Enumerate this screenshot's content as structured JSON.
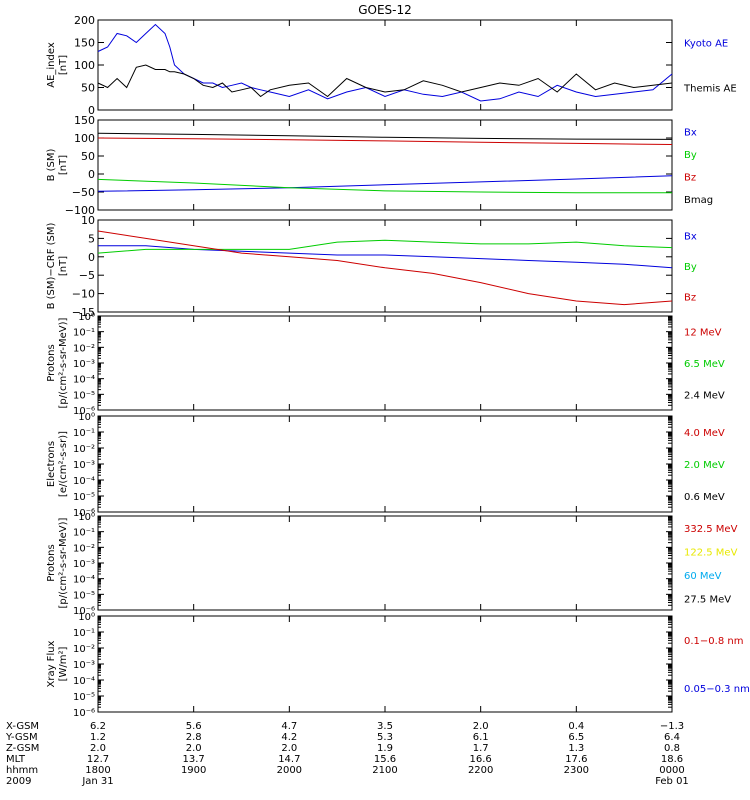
{
  "title": "GOES-12",
  "colors": {
    "black": "#000000",
    "blue": "#0000dd",
    "red": "#cc0000",
    "green": "#00cc00",
    "yellow": "#e8e800",
    "cyan": "#00aaee"
  },
  "chart_data": [
    {
      "type": "line",
      "ylabel": [
        "AE_index",
        "[nT]"
      ],
      "ylim": [
        0,
        200
      ],
      "yticks": [
        "200",
        "150",
        "100",
        "50",
        "0"
      ],
      "yticks_values": [
        200,
        150,
        100,
        50,
        0
      ],
      "legend": [
        {
          "label": "Kyoto AE",
          "color": "blue"
        },
        {
          "label": "Themis AE",
          "color": "black"
        }
      ],
      "x": [
        0,
        0.1,
        0.2,
        0.3,
        0.4,
        0.5,
        0.6,
        0.7,
        0.75,
        0.8,
        0.9,
        1.0,
        1.1,
        1.2,
        1.3,
        1.4,
        1.5,
        1.6,
        1.7,
        1.8,
        2.0,
        2.2,
        2.4,
        2.6,
        2.8,
        3.0,
        3.2,
        3.4,
        3.6,
        3.8,
        4.0,
        4.2,
        4.4,
        4.6,
        4.8,
        5.0,
        5.2,
        5.4,
        5.6,
        5.8,
        6.0
      ],
      "series": [
        {
          "name": "Kyoto AE",
          "color": "blue",
          "values": [
            130,
            140,
            170,
            165,
            150,
            170,
            190,
            170,
            140,
            100,
            80,
            70,
            60,
            60,
            50,
            55,
            60,
            50,
            45,
            40,
            30,
            45,
            25,
            40,
            50,
            30,
            45,
            35,
            30,
            40,
            20,
            25,
            40,
            30,
            55,
            40,
            30,
            35,
            40,
            45,
            80
          ]
        },
        {
          "name": "Themis AE",
          "color": "black",
          "values": [
            60,
            50,
            70,
            50,
            95,
            100,
            90,
            90,
            85,
            85,
            80,
            70,
            55,
            50,
            60,
            40,
            45,
            50,
            30,
            45,
            55,
            60,
            30,
            70,
            50,
            40,
            45,
            65,
            55,
            40,
            50,
            60,
            55,
            70,
            40,
            80,
            45,
            60,
            50,
            55,
            60
          ]
        }
      ]
    },
    {
      "type": "line",
      "ylabel": [
        "B (SM)",
        "[nT]"
      ],
      "ylim": [
        -100,
        150
      ],
      "yticks": [
        "150",
        "100",
        "50",
        "0",
        "−50",
        "−100"
      ],
      "yticks_values": [
        150,
        100,
        50,
        0,
        -50,
        -100
      ],
      "legend": [
        {
          "label": "Bx",
          "color": "blue"
        },
        {
          "label": "By",
          "color": "green"
        },
        {
          "label": "Bz",
          "color": "red"
        },
        {
          "label": "Bmag",
          "color": "black"
        }
      ],
      "x": [
        0,
        1,
        2,
        3,
        4,
        5,
        6
      ],
      "series": [
        {
          "name": "Bx",
          "color": "blue",
          "values": [
            -48,
            -44,
            -38,
            -30,
            -22,
            -14,
            -5
          ]
        },
        {
          "name": "By",
          "color": "green",
          "values": [
            -15,
            -25,
            -38,
            -47,
            -50,
            -52,
            -52
          ]
        },
        {
          "name": "Bz",
          "color": "red",
          "values": [
            100,
            98,
            95,
            92,
            88,
            85,
            82
          ]
        },
        {
          "name": "Bmag",
          "color": "black",
          "values": [
            113,
            110,
            106,
            102,
            99,
            97,
            96
          ]
        }
      ]
    },
    {
      "type": "line",
      "ylabel": [
        "B (SM)−CRF (SM)",
        "[nT]"
      ],
      "ylim": [
        -15,
        10
      ],
      "yticks": [
        "10",
        "5",
        "0",
        "−5",
        "−10",
        "−15"
      ],
      "yticks_values": [
        10,
        5,
        0,
        -5,
        -10,
        -15
      ],
      "legend": [
        {
          "label": "Bx",
          "color": "blue"
        },
        {
          "label": "By",
          "color": "green"
        },
        {
          "label": "Bz",
          "color": "red"
        }
      ],
      "x": [
        0,
        0.5,
        1,
        1.5,
        2,
        2.5,
        3,
        3.5,
        4,
        4.5,
        5,
        5.5,
        6
      ],
      "series": [
        {
          "name": "Bx",
          "color": "blue",
          "values": [
            3,
            3,
            2,
            1.5,
            1,
            0.5,
            0.5,
            0,
            -0.5,
            -1,
            -1.5,
            -2,
            -3
          ]
        },
        {
          "name": "By",
          "color": "green",
          "values": [
            1,
            2,
            2,
            2,
            2,
            4,
            4.5,
            4,
            3.5,
            3.5,
            4,
            3,
            2.5
          ]
        },
        {
          "name": "Bz",
          "color": "red",
          "values": [
            7,
            5,
            3,
            1,
            0,
            -1,
            -3,
            -4.5,
            -7,
            -10,
            -12,
            -13,
            -12
          ]
        }
      ]
    },
    {
      "type": "line",
      "ylabel": [
        "Protons",
        "[p/(cm²-s-sr-MeV)]"
      ],
      "log": true,
      "yticks": [
        "10⁰",
        "10⁻¹",
        "10⁻²",
        "10⁻³",
        "10⁻⁴",
        "10⁻⁵",
        "10⁻⁶"
      ],
      "legend": [
        {
          "label": "12 MeV",
          "color": "red"
        },
        {
          "label": "6.5 MeV",
          "color": "green"
        },
        {
          "label": "2.4 MeV",
          "color": "black"
        }
      ],
      "series": []
    },
    {
      "type": "line",
      "ylabel": [
        "Electrons",
        "[e/(cm²-s-sr)]"
      ],
      "log": true,
      "yticks": [
        "10⁰",
        "10⁻¹",
        "10⁻²",
        "10⁻³",
        "10⁻⁴",
        "10⁻⁵",
        "10⁻⁶"
      ],
      "legend": [
        {
          "label": "4.0 MeV",
          "color": "red"
        },
        {
          "label": "2.0 MeV",
          "color": "green"
        },
        {
          "label": "0.6 MeV",
          "color": "black"
        }
      ],
      "series": []
    },
    {
      "type": "line",
      "ylabel": [
        "Protons",
        "[p/(cm²-s-sr-MeV)]"
      ],
      "log": true,
      "yticks": [
        "10⁰",
        "10⁻¹",
        "10⁻²",
        "10⁻³",
        "10⁻⁴",
        "10⁻⁵",
        "10⁻⁶"
      ],
      "legend": [
        {
          "label": "332.5 MeV",
          "color": "red"
        },
        {
          "label": "122.5 MeV",
          "color": "yellow"
        },
        {
          "label": "60 MeV",
          "color": "cyan"
        },
        {
          "label": "27.5 MeV",
          "color": "black"
        }
      ],
      "series": []
    },
    {
      "type": "line",
      "ylabel": [
        "Xray Flux",
        "[W/m²]"
      ],
      "log": true,
      "yticks": [
        "10⁰",
        "10⁻¹",
        "10⁻²",
        "10⁻³",
        "10⁻⁴",
        "10⁻⁵",
        "10⁻⁶"
      ],
      "legend": [
        {
          "label": "0.1−0.8 nm",
          "color": "red"
        },
        {
          "label": "0.05−0.3 nm",
          "color": "blue"
        }
      ],
      "series": []
    }
  ],
  "xaxis": {
    "rows": [
      {
        "label": "X-GSM",
        "values": [
          "6.2",
          "5.6",
          "4.7",
          "3.5",
          "2.0",
          "0.4",
          "−1.3"
        ]
      },
      {
        "label": "Y-GSM",
        "values": [
          "1.2",
          "2.8",
          "4.2",
          "5.3",
          "6.1",
          "6.5",
          "6.4"
        ]
      },
      {
        "label": "Z-GSM",
        "values": [
          "2.0",
          "2.0",
          "2.0",
          "1.9",
          "1.7",
          "1.3",
          "0.8"
        ]
      },
      {
        "label": "MLT",
        "values": [
          "12.7",
          "13.7",
          "14.7",
          "15.6",
          "16.6",
          "17.6",
          "18.6"
        ]
      },
      {
        "label": "hhmm",
        "values": [
          "1800",
          "1900",
          "2000",
          "2100",
          "2200",
          "2300",
          "0000"
        ]
      },
      {
        "label": "2009",
        "values": [
          "Jan 31",
          "",
          "",
          "",
          "",
          "",
          "Feb 01"
        ]
      }
    ]
  }
}
